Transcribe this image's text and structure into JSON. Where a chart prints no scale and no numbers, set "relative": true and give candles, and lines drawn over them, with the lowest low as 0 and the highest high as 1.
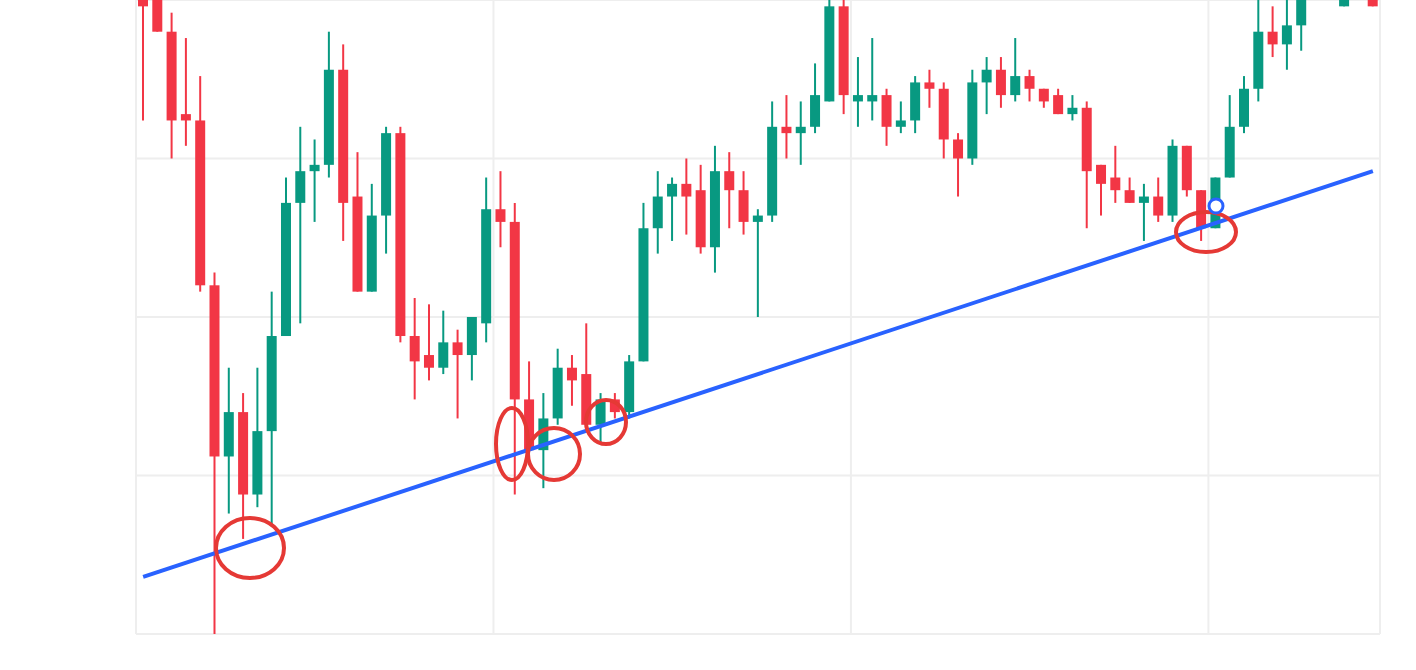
{
  "chart_data": {
    "type": "candlestick",
    "relative": true,
    "grid": true,
    "categories": [
      null,
      null,
      null,
      null,
      null,
      null,
      null,
      null,
      null,
      null,
      null,
      null,
      null,
      null,
      null,
      null,
      null,
      null,
      null,
      null,
      null,
      null,
      null,
      null,
      null,
      null,
      null,
      null,
      null,
      null,
      null,
      null,
      null,
      null,
      null,
      null,
      null,
      null,
      null,
      null,
      null,
      null,
      null,
      null,
      null,
      null,
      null,
      null,
      null,
      null,
      null,
      null,
      null,
      null,
      null,
      null,
      null,
      null,
      null,
      null,
      null,
      null,
      null,
      null,
      null,
      null,
      null,
      null,
      null,
      null,
      null,
      null,
      null,
      null,
      null,
      null,
      null,
      null,
      null,
      null,
      null,
      null,
      null,
      null,
      null,
      null,
      null
    ],
    "ohlc": [
      [
        1.0,
        1.0,
        0.81,
        0.99
      ],
      [
        1.0,
        1.0,
        0.95,
        0.95
      ],
      [
        0.95,
        0.98,
        0.75,
        0.81
      ],
      [
        0.82,
        0.94,
        0.77,
        0.81
      ],
      [
        0.81,
        0.88,
        0.54,
        0.55
      ],
      [
        0.55,
        0.57,
        0.0,
        0.28
      ],
      [
        0.28,
        0.42,
        0.19,
        0.35
      ],
      [
        0.35,
        0.38,
        0.15,
        0.22
      ],
      [
        0.22,
        0.42,
        0.2,
        0.32
      ],
      [
        0.32,
        0.54,
        0.17,
        0.47
      ],
      [
        0.47,
        0.72,
        0.47,
        0.68
      ],
      [
        0.68,
        0.8,
        0.49,
        0.73
      ],
      [
        0.73,
        0.78,
        0.65,
        0.74
      ],
      [
        0.74,
        0.95,
        0.72,
        0.89
      ],
      [
        0.89,
        0.93,
        0.62,
        0.68
      ],
      [
        0.69,
        0.76,
        0.54,
        0.54
      ],
      [
        0.54,
        0.71,
        0.54,
        0.66
      ],
      [
        0.66,
        0.8,
        0.6,
        0.79
      ],
      [
        0.79,
        0.8,
        0.46,
        0.47
      ],
      [
        0.47,
        0.53,
        0.37,
        0.43
      ],
      [
        0.44,
        0.52,
        0.4,
        0.42
      ],
      [
        0.42,
        0.51,
        0.41,
        0.46
      ],
      [
        0.46,
        0.48,
        0.34,
        0.44
      ],
      [
        0.44,
        0.5,
        0.4,
        0.5
      ],
      [
        0.49,
        0.72,
        0.46,
        0.67
      ],
      [
        0.67,
        0.73,
        0.61,
        0.65
      ],
      [
        0.65,
        0.68,
        0.22,
        0.37
      ],
      [
        0.37,
        0.43,
        0.29,
        0.29
      ],
      [
        0.29,
        0.38,
        0.23,
        0.34
      ],
      [
        0.34,
        0.45,
        0.33,
        0.42
      ],
      [
        0.42,
        0.44,
        0.36,
        0.4
      ],
      [
        0.41,
        0.49,
        0.32,
        0.33
      ],
      [
        0.33,
        0.38,
        0.3,
        0.37
      ],
      [
        0.37,
        0.38,
        0.34,
        0.35
      ],
      [
        0.35,
        0.44,
        0.34,
        0.43
      ],
      [
        0.43,
        0.68,
        0.43,
        0.64
      ],
      [
        0.64,
        0.73,
        0.6,
        0.69
      ],
      [
        0.69,
        0.72,
        0.62,
        0.71
      ],
      [
        0.71,
        0.75,
        0.63,
        0.69
      ],
      [
        0.7,
        0.74,
        0.6,
        0.61
      ],
      [
        0.61,
        0.77,
        0.57,
        0.73
      ],
      [
        0.73,
        0.76,
        0.64,
        0.7
      ],
      [
        0.7,
        0.73,
        0.63,
        0.65
      ],
      [
        0.65,
        0.67,
        0.5,
        0.66
      ],
      [
        0.66,
        0.84,
        0.65,
        0.8
      ],
      [
        0.8,
        0.85,
        0.75,
        0.79
      ],
      [
        0.79,
        0.84,
        0.74,
        0.8
      ],
      [
        0.8,
        0.9,
        0.79,
        0.85
      ],
      [
        0.84,
        1.0,
        0.84,
        0.99
      ],
      [
        0.99,
        1.0,
        0.82,
        0.85
      ],
      [
        0.84,
        0.91,
        0.8,
        0.85
      ],
      [
        0.84,
        0.94,
        0.81,
        0.85
      ],
      [
        0.85,
        0.86,
        0.77,
        0.8
      ],
      [
        0.8,
        0.84,
        0.79,
        0.81
      ],
      [
        0.81,
        0.88,
        0.79,
        0.87
      ],
      [
        0.87,
        0.89,
        0.83,
        0.86
      ],
      [
        0.86,
        0.87,
        0.75,
        0.78
      ],
      [
        0.78,
        0.79,
        0.69,
        0.75
      ],
      [
        0.75,
        0.89,
        0.74,
        0.87
      ],
      [
        0.87,
        0.91,
        0.82,
        0.89
      ],
      [
        0.89,
        0.91,
        0.83,
        0.85
      ],
      [
        0.85,
        0.94,
        0.84,
        0.88
      ],
      [
        0.88,
        0.89,
        0.84,
        0.86
      ],
      [
        0.86,
        0.86,
        0.83,
        0.84
      ],
      [
        0.85,
        0.86,
        0.82,
        0.82
      ],
      [
        0.82,
        0.85,
        0.81,
        0.83
      ],
      [
        0.83,
        0.84,
        0.64,
        0.73
      ],
      [
        0.74,
        0.74,
        0.66,
        0.71
      ],
      [
        0.72,
        0.77,
        0.68,
        0.7
      ],
      [
        0.7,
        0.72,
        0.68,
        0.68
      ],
      [
        0.68,
        0.71,
        0.62,
        0.69
      ],
      [
        0.69,
        0.72,
        0.65,
        0.66
      ],
      [
        0.66,
        0.78,
        0.65,
        0.77
      ],
      [
        0.77,
        0.77,
        0.69,
        0.7
      ],
      [
        0.7,
        0.7,
        0.62,
        0.64
      ],
      [
        0.64,
        0.72,
        0.64,
        0.72
      ],
      [
        0.72,
        0.85,
        0.72,
        0.8
      ],
      [
        0.8,
        0.88,
        0.79,
        0.86
      ],
      [
        0.86,
        1.0,
        0.84,
        0.95
      ],
      [
        0.95,
        0.99,
        0.91,
        0.93
      ],
      [
        0.93,
        1.0,
        0.89,
        0.96
      ],
      [
        0.96,
        1.0,
        0.92,
        1.0
      ],
      null,
      null,
      [
        0.99,
        1.0,
        0.99,
        1.0
      ],
      null,
      [
        1.0,
        1.0,
        0.99,
        0.99
      ]
    ],
    "series": [
      {
        "type": "line",
        "values": [
          0.09,
          null,
          null,
          null,
          null,
          null,
          null,
          null,
          null,
          null,
          null,
          null,
          null,
          null,
          null,
          null,
          null,
          null,
          null,
          null,
          null,
          null,
          null,
          null,
          null,
          null,
          null,
          null,
          null,
          null,
          null,
          null,
          null,
          null,
          null,
          null,
          null,
          null,
          null,
          null,
          null,
          null,
          null,
          null,
          null,
          null,
          null,
          null,
          null,
          null,
          null,
          null,
          null,
          null,
          null,
          null,
          null,
          null,
          null,
          null,
          null,
          null,
          null,
          null,
          null,
          null,
          null,
          null,
          null,
          null,
          null,
          null,
          null,
          null,
          null,
          null,
          null,
          null,
          null,
          null,
          null,
          null,
          null,
          null,
          null,
          null,
          0.73
        ],
        "color": "#2962ff"
      }
    ]
  }
}
